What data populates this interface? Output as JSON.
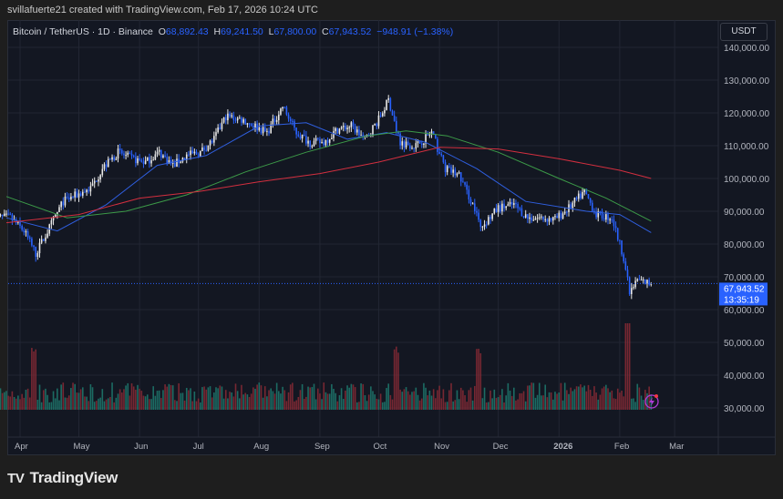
{
  "credit": "svillafuerte21 created with TradingView.com, Feb 17, 2026 10:24 UTC",
  "legend": {
    "symbol": "Bitcoin / TetherUS · 1D · Binance",
    "o_label": "O",
    "o": "68,892.43",
    "h_label": "H",
    "h": "69,241.50",
    "l_label": "L",
    "l": "67,800.00",
    "c_label": "C",
    "c": "67,943.52",
    "change": "−948.91 (−1.38%)"
  },
  "currency": "USDT",
  "last_price": {
    "value": "67,943.52",
    "countdown": "13:35:19"
  },
  "logo": "TradingView",
  "colors": {
    "up": "#e8e8e8",
    "down": "#2962ff",
    "ma_fast": "#2f5fe0",
    "ma_mid": "#3c9a48",
    "ma_slow": "#d32f3f",
    "vol_up": "#1f7a6e",
    "vol_down": "#8a2a35",
    "price_label": "#2962ff"
  },
  "chart_data": {
    "type": "candlestick",
    "ylim": [
      30000,
      145000
    ],
    "y_ticks": [
      "140,000.00",
      "130,000.00",
      "120,000.00",
      "110,000.00",
      "100,000.00",
      "90,000.00",
      "80,000.00",
      "70,000.00",
      "60,000.00",
      "50,000.00",
      "40,000.00",
      "30,000.00"
    ],
    "x_ticks": [
      "Apr",
      "May",
      "Jun",
      "Jul",
      "Aug",
      "Sep",
      "Oct",
      "Nov",
      "Dec",
      "2026",
      "Feb",
      "Mar"
    ],
    "grid": true,
    "approx_closes": [
      [
        "2025-03-27",
        88000
      ],
      [
        "2025-04-03",
        84000
      ],
      [
        "2025-04-09",
        77000
      ],
      [
        "2025-04-16",
        85000
      ],
      [
        "2025-04-23",
        93000
      ],
      [
        "2025-04-30",
        95000
      ],
      [
        "2025-05-07",
        97000
      ],
      [
        "2025-05-13",
        103000
      ],
      [
        "2025-05-21",
        108000
      ],
      [
        "2025-05-28",
        106000
      ],
      [
        "2025-06-04",
        105000
      ],
      [
        "2025-06-11",
        108000
      ],
      [
        "2025-06-18",
        104000
      ],
      [
        "2025-06-25",
        107000
      ],
      [
        "2025-07-02",
        108000
      ],
      [
        "2025-07-09",
        112000
      ],
      [
        "2025-07-15",
        119000
      ],
      [
        "2025-07-23",
        118000
      ],
      [
        "2025-07-30",
        116000
      ],
      [
        "2025-08-05",
        114000
      ],
      [
        "2025-08-13",
        122000
      ],
      [
        "2025-08-20",
        114000
      ],
      [
        "2025-08-27",
        111000
      ],
      [
        "2025-09-03",
        111000
      ],
      [
        "2025-09-10",
        115000
      ],
      [
        "2025-09-17",
        116000
      ],
      [
        "2025-09-24",
        112000
      ],
      [
        "2025-10-01",
        118000
      ],
      [
        "2025-10-06",
        124000
      ],
      [
        "2025-10-12",
        111000
      ],
      [
        "2025-10-20",
        110000
      ],
      [
        "2025-10-28",
        114000
      ],
      [
        "2025-11-04",
        103000
      ],
      [
        "2025-11-11",
        101000
      ],
      [
        "2025-11-18",
        92000
      ],
      [
        "2025-11-22",
        85000
      ],
      [
        "2025-12-01",
        91000
      ],
      [
        "2025-12-09",
        92000
      ],
      [
        "2025-12-16",
        88000
      ],
      [
        "2025-12-23",
        88000
      ],
      [
        "2025-12-30",
        87500
      ],
      [
        "2026-01-06",
        91000
      ],
      [
        "2026-01-14",
        96000
      ],
      [
        "2026-01-20",
        89000
      ],
      [
        "2026-01-28",
        88000
      ],
      [
        "2026-02-03",
        76000
      ],
      [
        "2026-02-06",
        65000
      ],
      [
        "2026-02-10",
        69000
      ],
      [
        "2026-02-17",
        67943.52
      ]
    ],
    "moving_averages": [
      {
        "color": "ma_fast",
        "points": [
          [
            "2025-03-25",
            88000
          ],
          [
            "2025-04-20",
            84000
          ],
          [
            "2025-05-15",
            92000
          ],
          [
            "2025-06-10",
            104000
          ],
          [
            "2025-07-05",
            107000
          ],
          [
            "2025-08-01",
            116000
          ],
          [
            "2025-08-25",
            117000
          ],
          [
            "2025-09-15",
            112000
          ],
          [
            "2025-10-05",
            114000
          ],
          [
            "2025-10-25",
            111000
          ],
          [
            "2025-11-20",
            103000
          ],
          [
            "2025-12-15",
            93000
          ],
          [
            "2026-01-15",
            90000
          ],
          [
            "2026-02-01",
            89000
          ],
          [
            "2026-02-17",
            83500
          ]
        ]
      },
      {
        "color": "ma_mid",
        "points": [
          [
            "2025-03-25",
            94500
          ],
          [
            "2025-04-25",
            88000
          ],
          [
            "2025-05-25",
            90000
          ],
          [
            "2025-06-25",
            95000
          ],
          [
            "2025-07-25",
            102000
          ],
          [
            "2025-08-25",
            108000
          ],
          [
            "2025-09-25",
            113000
          ],
          [
            "2025-10-15",
            114500
          ],
          [
            "2025-11-05",
            113000
          ],
          [
            "2025-12-01",
            108000
          ],
          [
            "2026-01-01",
            100000
          ],
          [
            "2026-01-25",
            94000
          ],
          [
            "2026-02-17",
            87000
          ]
        ]
      },
      {
        "color": "ma_slow",
        "points": [
          [
            "2025-03-25",
            86500
          ],
          [
            "2025-05-01",
            89000
          ],
          [
            "2025-06-01",
            94000
          ],
          [
            "2025-07-01",
            96000
          ],
          [
            "2025-08-01",
            99000
          ],
          [
            "2025-09-01",
            101500
          ],
          [
            "2025-10-01",
            105000
          ],
          [
            "2025-11-01",
            109500
          ],
          [
            "2025-12-01",
            109000
          ],
          [
            "2026-01-01",
            106000
          ],
          [
            "2026-02-01",
            102500
          ],
          [
            "2026-02-17",
            100000
          ]
        ]
      }
    ],
    "volume_spikes": [
      [
        "2025-04-08",
        "high"
      ],
      [
        "2026-02-05",
        "very high"
      ],
      [
        "2025-11-21",
        "high"
      ],
      [
        "2025-10-10",
        "high"
      ]
    ]
  }
}
